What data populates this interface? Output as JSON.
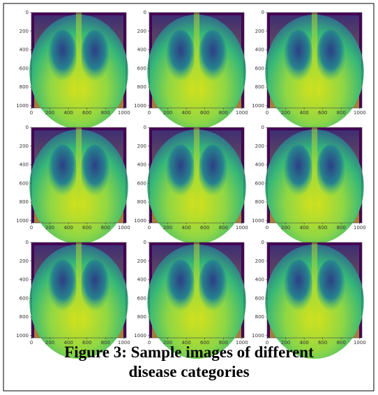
{
  "panels": 9,
  "xlim": [
    0,
    1024
  ],
  "ylim": [
    0,
    1024
  ],
  "xticks": [
    0,
    200,
    400,
    600,
    800,
    1000
  ],
  "yticks": [
    0,
    200,
    400,
    600,
    800,
    1000
  ],
  "caption": [
    "Figure 3: Sample images of different",
    "disease categories"
  ]
}
